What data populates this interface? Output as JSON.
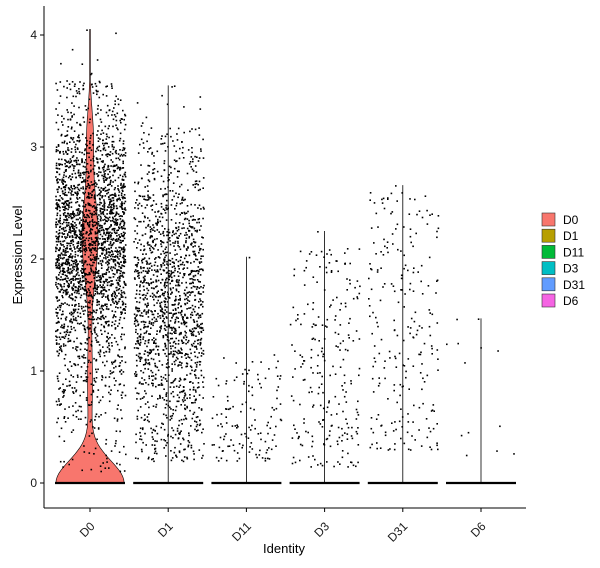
{
  "chart_data": {
    "type": "violin",
    "title": "",
    "xlabel": "Identity",
    "ylabel": "Expression Level",
    "ylim": [
      -0.25,
      4.2
    ],
    "yticks": [
      0,
      1,
      2,
      3,
      4
    ],
    "grid": false,
    "legend_position": "right",
    "categories": [
      "D0",
      "D1",
      "D11",
      "D3",
      "D31",
      "D6"
    ],
    "series": [
      {
        "name": "D0",
        "color": "#F8766D",
        "max": 4.05,
        "scatter_range": [
          0.1,
          3.6
        ],
        "n_points": 2600,
        "n_zero": 1600,
        "violin_width": 1.0
      },
      {
        "name": "D1",
        "color": "#B79F00",
        "max": 3.55,
        "scatter_range": [
          0.2,
          3.2
        ],
        "n_points": 1600,
        "n_zero": 1400,
        "violin_width": 0.0
      },
      {
        "name": "D11",
        "color": "#00BA38",
        "max": 2.02,
        "scatter_range": [
          0.2,
          1.15
        ],
        "n_points": 130,
        "n_zero": 900,
        "violin_width": 0.0
      },
      {
        "name": "D3",
        "color": "#00BFC4",
        "max": 2.25,
        "scatter_range": [
          0.15,
          2.1
        ],
        "n_points": 240,
        "n_zero": 900,
        "violin_width": 0.0
      },
      {
        "name": "D31",
        "color": "#619CFF",
        "max": 2.66,
        "scatter_range": [
          0.3,
          2.6
        ],
        "n_points": 230,
        "n_zero": 900,
        "violin_width": 0.0
      },
      {
        "name": "D6",
        "color": "#F564E3",
        "max": 1.47,
        "scatter_range": [
          0.25,
          1.5
        ],
        "n_points": 12,
        "n_zero": 400,
        "violin_width": 0.0
      }
    ]
  }
}
